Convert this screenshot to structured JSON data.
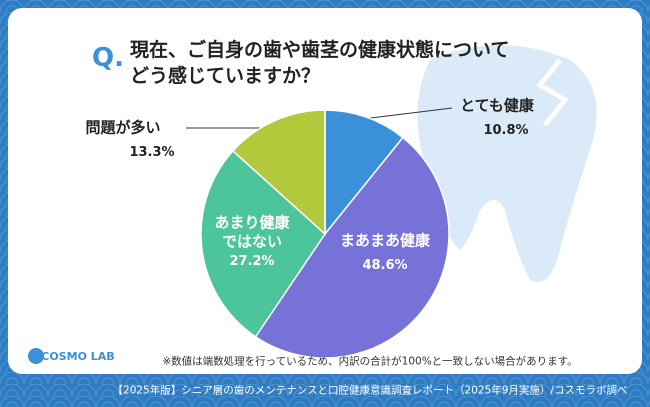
{
  "chart_data": {
    "type": "pie",
    "question_mark": "Q.",
    "title": "現在、ご自身の歯や歯茎の健康状態について\nどう感じていますか？",
    "categories": [
      "とても健康",
      "まあまあ健康",
      "あまり健康\nではない",
      "問題が多い"
    ],
    "values": [
      10.8,
      48.6,
      27.2,
      13.3
    ],
    "value_labels": [
      "10.8%",
      "48.6%",
      "27.2%",
      "13.3%"
    ],
    "colors": [
      "#3b90da",
      "#7772d8",
      "#4cc59a",
      "#b3c93c"
    ],
    "note": "※数値は端数処理を行っているため、内訳の合計が100%と一致しない場合があります。",
    "logo": "COSMO LAB",
    "footer": "【2025年版】シニア層の歯のメンテナンスと口腔健康意識調査レポート（2025年9月実施）/コスモラボ調べ"
  }
}
